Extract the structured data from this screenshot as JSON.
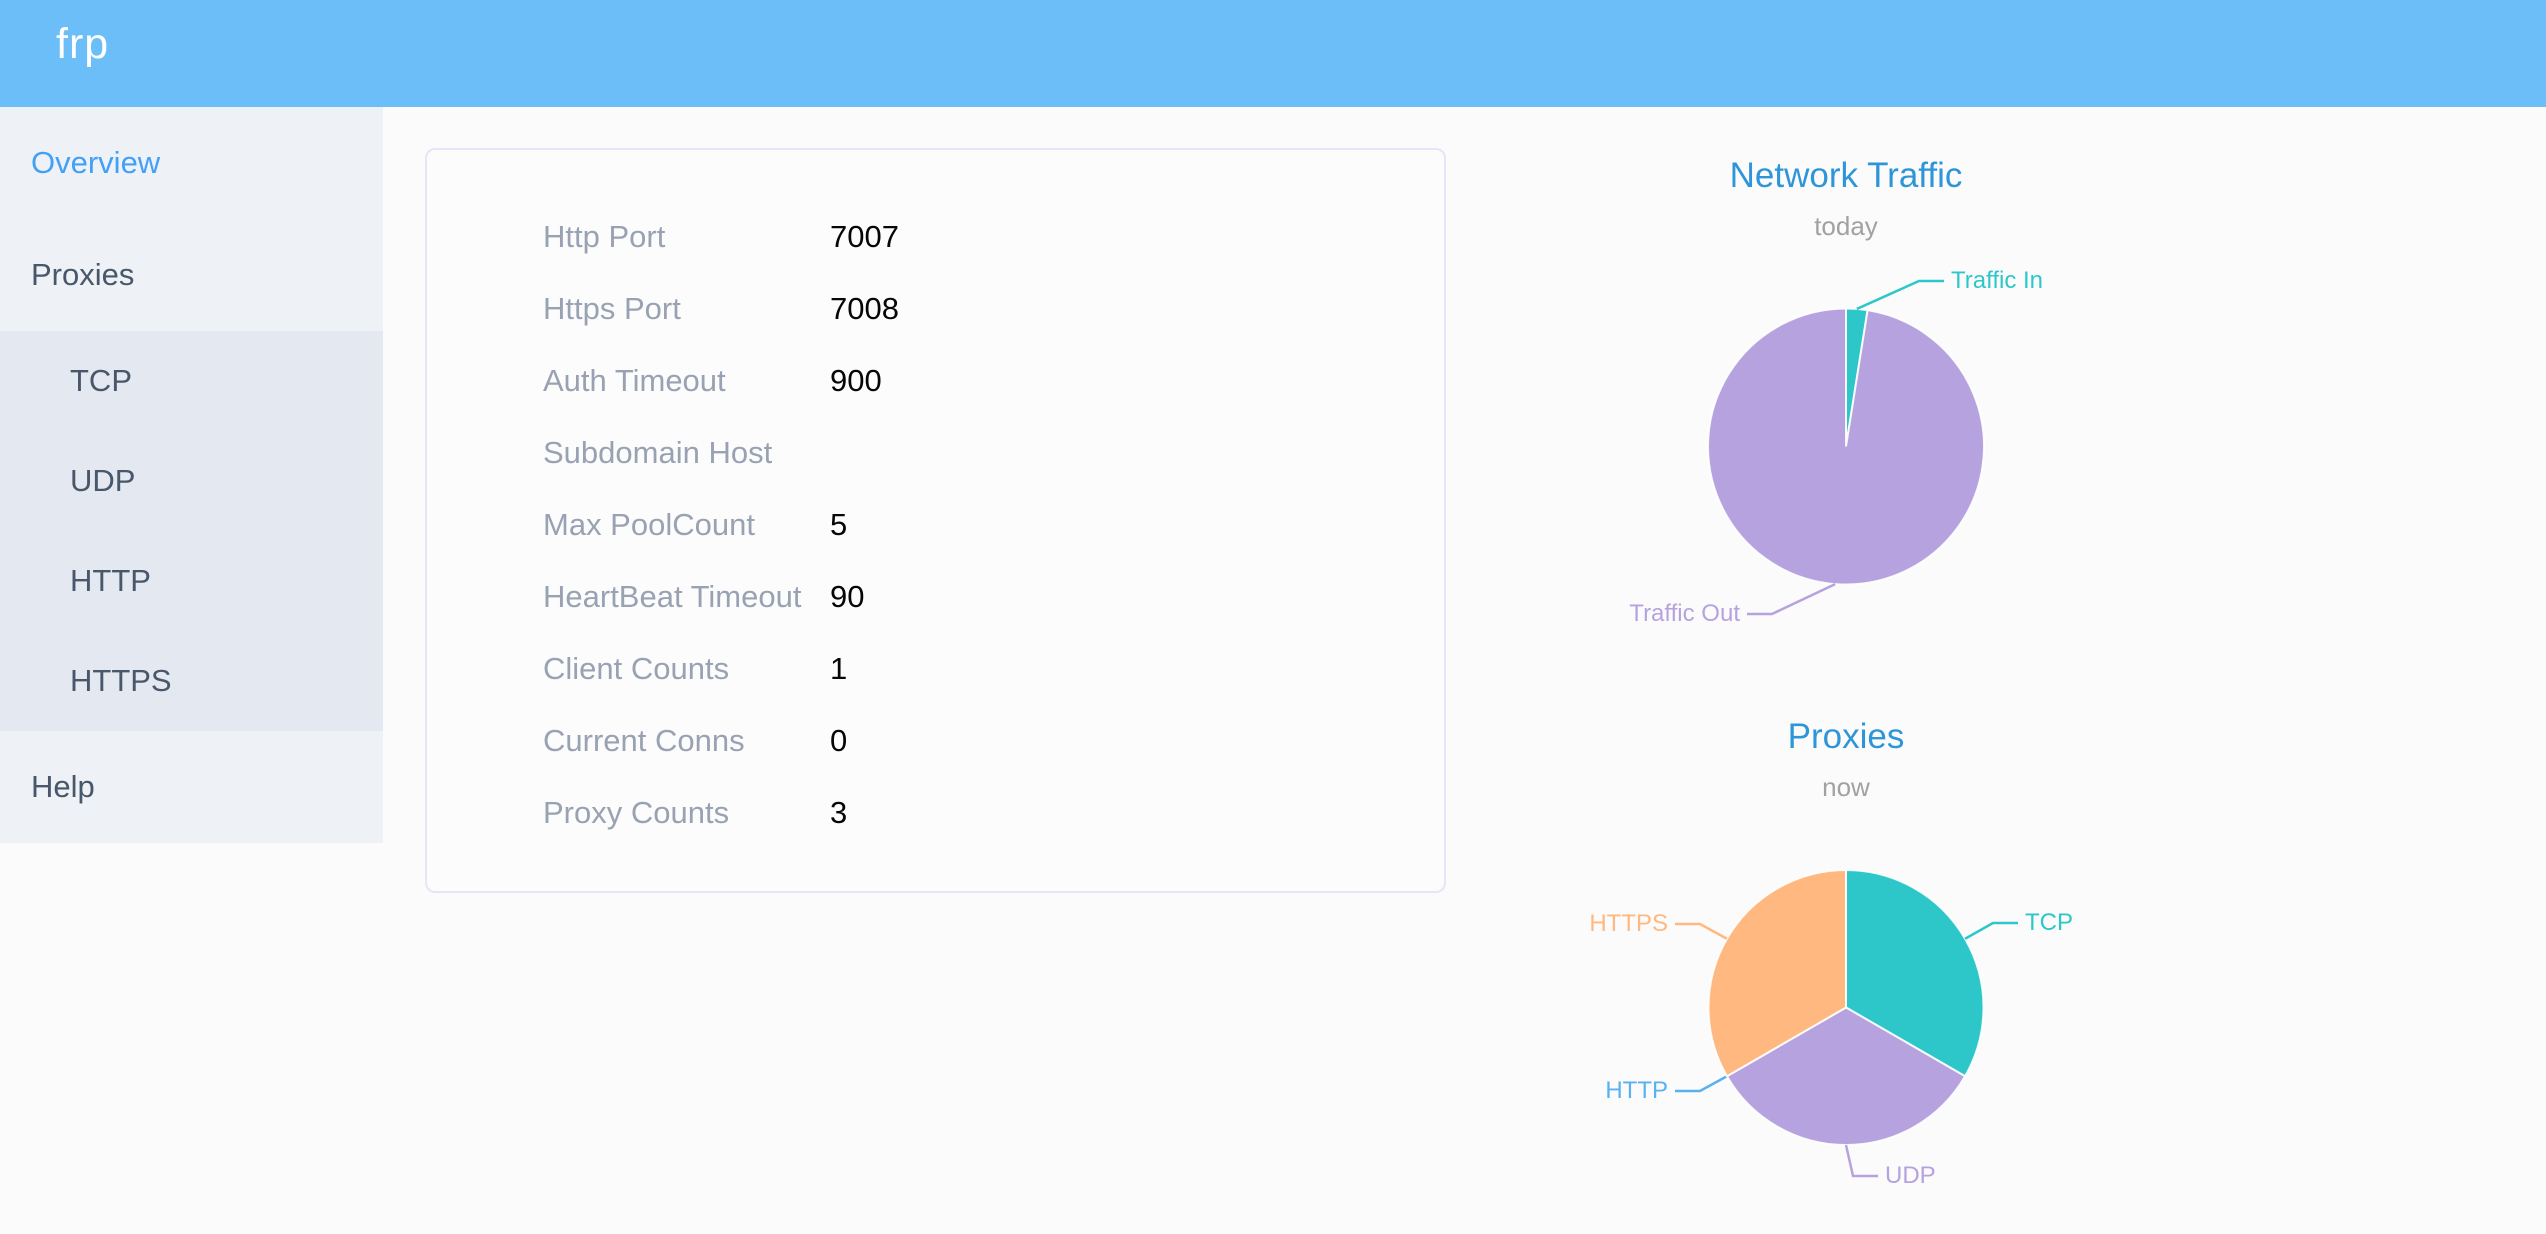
{
  "header": {
    "logo": "frp"
  },
  "sidebar": {
    "items": [
      {
        "label": "Overview",
        "active": true
      },
      {
        "label": "Proxies",
        "expanded": true,
        "children": [
          "TCP",
          "UDP",
          "HTTP",
          "HTTPS"
        ]
      },
      {
        "label": "Help"
      }
    ]
  },
  "overview_card": {
    "rows": [
      {
        "label": "Http Port",
        "value": "7007"
      },
      {
        "label": "Https Port",
        "value": "7008"
      },
      {
        "label": "Auth Timeout",
        "value": "900"
      },
      {
        "label": "Subdomain Host",
        "value": ""
      },
      {
        "label": "Max PoolCount",
        "value": "5"
      },
      {
        "label": "HeartBeat Timeout",
        "value": "90"
      },
      {
        "label": "Client Counts",
        "value": "1"
      },
      {
        "label": "Current Conns",
        "value": "0"
      },
      {
        "label": "Proxy Counts",
        "value": "3"
      }
    ]
  },
  "chart_data": [
    {
      "id": "traffic",
      "type": "pie",
      "title": "Network Traffic",
      "subtitle": "today",
      "legend_position": "none",
      "series": [
        {
          "name": "Traffic In",
          "value": 2.5,
          "color": "#2ec7c9"
        },
        {
          "name": "Traffic Out",
          "value": 97.5,
          "color": "#b6a2de"
        }
      ]
    },
    {
      "id": "proxies",
      "type": "pie",
      "title": "Proxies",
      "subtitle": "now",
      "legend_position": "none",
      "series": [
        {
          "name": "TCP",
          "value": 1,
          "color": "#2ec7c9"
        },
        {
          "name": "UDP",
          "value": 1,
          "color": "#b6a2de"
        },
        {
          "name": "HTTP",
          "value": 0,
          "color": "#5ab1ef"
        },
        {
          "name": "HTTPS",
          "value": 1,
          "color": "#ffb980"
        }
      ]
    }
  ],
  "colors": {
    "header_bg": "#6bbef8",
    "sidebar_bg": "#eef1f6",
    "submenu_bg": "#e4e8f1",
    "nav_text": "#48576a",
    "nav_active": "#43a0f7",
    "card_border": "#e3e7f6",
    "label_gray": "#99a2b2",
    "title_blue": "#2e96d8",
    "subtitle_gray": "#a1a1a1"
  }
}
